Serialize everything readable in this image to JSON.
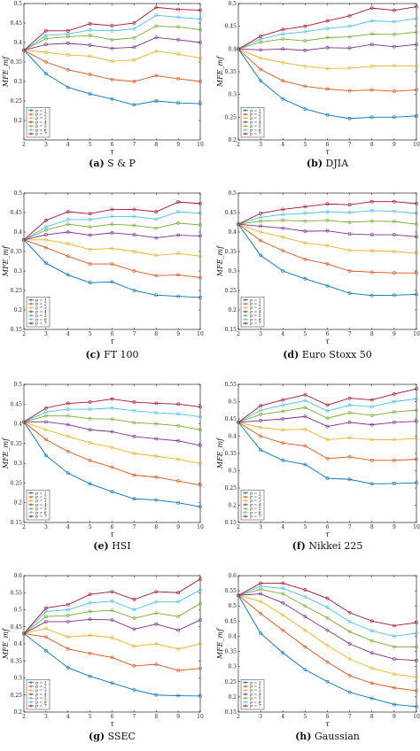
{
  "figure": {
    "series_colors": [
      "#0072BD",
      "#D95319",
      "#EDB120",
      "#7E2F8E",
      "#77AC30",
      "#4DBEEE",
      "#A2142F"
    ],
    "legend_position": "bottom-left",
    "marker": "open-circle"
  },
  "chart_data": [
    {
      "type": "line",
      "caption_letter": "(a)",
      "caption_text": "S & P",
      "xlabel": "τ",
      "ylabel": "MFE_mf",
      "xlim": [
        2,
        10
      ],
      "ylim": [
        0.15,
        0.5
      ],
      "xticks": [
        "2",
        "3",
        "4",
        "5",
        "6",
        "7",
        "8",
        "9",
        "10"
      ],
      "yticks": [
        "0.2",
        "0.25",
        "0.3",
        "0.35",
        "0.4",
        "0.45",
        "0.5"
      ],
      "x": [
        2,
        3,
        4,
        5,
        6,
        7,
        8,
        9,
        10
      ],
      "series": [
        {
          "name": "p = 1",
          "values": [
            0.38,
            0.32,
            0.285,
            0.268,
            0.255,
            0.24,
            0.25,
            0.245,
            0.243
          ]
        },
        {
          "name": "p = 2",
          "values": [
            0.38,
            0.35,
            0.33,
            0.318,
            0.305,
            0.3,
            0.315,
            0.307,
            0.3
          ]
        },
        {
          "name": "p = 3",
          "values": [
            0.38,
            0.375,
            0.368,
            0.365,
            0.352,
            0.355,
            0.378,
            0.37,
            0.36
          ]
        },
        {
          "name": "p = 4",
          "values": [
            0.38,
            0.395,
            0.398,
            0.393,
            0.385,
            0.388,
            0.413,
            0.407,
            0.4
          ]
        },
        {
          "name": "p = 5",
          "values": [
            0.38,
            0.41,
            0.415,
            0.418,
            0.407,
            0.412,
            0.442,
            0.44,
            0.433
          ]
        },
        {
          "name": "p = 6",
          "values": [
            0.38,
            0.418,
            0.422,
            0.432,
            0.43,
            0.435,
            0.47,
            0.465,
            0.46
          ]
        },
        {
          "name": "p = 7",
          "values": [
            0.38,
            0.43,
            0.43,
            0.448,
            0.443,
            0.45,
            0.49,
            0.485,
            0.483
          ]
        }
      ]
    },
    {
      "type": "line",
      "caption_letter": "(b)",
      "caption_text": "DJIA",
      "xlabel": "τ",
      "ylabel": "MFE_mf",
      "xlim": [
        2,
        10
      ],
      "ylim": [
        0.2,
        0.5
      ],
      "xticks": [
        "2",
        "3",
        "4",
        "5",
        "6",
        "7",
        "8",
        "9",
        "10"
      ],
      "yticks": [
        "0.2",
        "0.25",
        "0.3",
        "0.35",
        "0.4",
        "0.45",
        "0.5"
      ],
      "x": [
        2,
        3,
        4,
        5,
        6,
        7,
        8,
        9,
        10
      ],
      "series": [
        {
          "name": "p = 1",
          "values": [
            0.4,
            0.33,
            0.29,
            0.268,
            0.255,
            0.247,
            0.25,
            0.25,
            0.253
          ]
        },
        {
          "name": "p = 2",
          "values": [
            0.4,
            0.355,
            0.33,
            0.318,
            0.312,
            0.308,
            0.31,
            0.307,
            0.31
          ]
        },
        {
          "name": "p = 3",
          "values": [
            0.4,
            0.38,
            0.37,
            0.362,
            0.357,
            0.358,
            0.362,
            0.363,
            0.362
          ]
        },
        {
          "name": "p = 4",
          "values": [
            0.4,
            0.398,
            0.4,
            0.397,
            0.403,
            0.402,
            0.41,
            0.405,
            0.41
          ]
        },
        {
          "name": "p = 5",
          "values": [
            0.4,
            0.415,
            0.422,
            0.418,
            0.425,
            0.427,
            0.433,
            0.432,
            0.437
          ]
        },
        {
          "name": "p = 6",
          "values": [
            0.4,
            0.422,
            0.433,
            0.438,
            0.445,
            0.45,
            0.462,
            0.46,
            0.467
          ]
        },
        {
          "name": "p = 7",
          "values": [
            0.4,
            0.428,
            0.443,
            0.45,
            0.462,
            0.473,
            0.49,
            0.485,
            0.493
          ]
        }
      ]
    },
    {
      "type": "line",
      "caption_letter": "(c)",
      "caption_text": "FT 100",
      "xlabel": "τ",
      "ylabel": "MFE_mf",
      "xlim": [
        2,
        10
      ],
      "ylim": [
        0.15,
        0.5
      ],
      "xticks": [
        "2",
        "3",
        "4",
        "5",
        "6",
        "7",
        "8",
        "9",
        "10"
      ],
      "yticks": [
        "0.15",
        "0.2",
        "0.25",
        "0.3",
        "0.35",
        "0.4",
        "0.45",
        "0.5"
      ],
      "x": [
        2,
        3,
        4,
        5,
        6,
        7,
        8,
        9,
        10
      ],
      "series": [
        {
          "name": "p = 1",
          "values": [
            0.38,
            0.32,
            0.29,
            0.27,
            0.272,
            0.25,
            0.238,
            0.235,
            0.232
          ]
        },
        {
          "name": "p = 2",
          "values": [
            0.38,
            0.36,
            0.338,
            0.318,
            0.318,
            0.3,
            0.288,
            0.29,
            0.283
          ]
        },
        {
          "name": "p = 3",
          "values": [
            0.38,
            0.38,
            0.37,
            0.355,
            0.358,
            0.35,
            0.34,
            0.345,
            0.338
          ]
        },
        {
          "name": "p = 4",
          "values": [
            0.38,
            0.393,
            0.4,
            0.392,
            0.398,
            0.393,
            0.385,
            0.392,
            0.39
          ]
        },
        {
          "name": "p = 5",
          "values": [
            0.38,
            0.405,
            0.42,
            0.413,
            0.42,
            0.417,
            0.41,
            0.423,
            0.418
          ]
        },
        {
          "name": "p = 6",
          "values": [
            0.38,
            0.413,
            0.432,
            0.432,
            0.44,
            0.44,
            0.433,
            0.452,
            0.448
          ]
        },
        {
          "name": "p = 7",
          "values": [
            0.38,
            0.43,
            0.452,
            0.447,
            0.458,
            0.458,
            0.452,
            0.477,
            0.473
          ]
        }
      ]
    },
    {
      "type": "line",
      "caption_letter": "(d)",
      "caption_text": "Euro Stoxx 50",
      "xlabel": "τ",
      "ylabel": "MFE_mf",
      "xlim": [
        2,
        10
      ],
      "ylim": [
        0.15,
        0.5
      ],
      "xticks": [
        "2",
        "3",
        "4",
        "5",
        "6",
        "7",
        "8",
        "9",
        "10"
      ],
      "yticks": [
        "0.15",
        "0.2",
        "0.25",
        "0.3",
        "0.35",
        "0.4",
        "0.45",
        "0.5"
      ],
      "x": [
        2,
        3,
        4,
        5,
        6,
        7,
        8,
        9,
        10
      ],
      "series": [
        {
          "name": "p = 1",
          "values": [
            0.42,
            0.34,
            0.3,
            0.28,
            0.262,
            0.243,
            0.237,
            0.238,
            0.24
          ]
        },
        {
          "name": "p = 2",
          "values": [
            0.42,
            0.378,
            0.352,
            0.33,
            0.318,
            0.3,
            0.297,
            0.295,
            0.295
          ]
        },
        {
          "name": "p = 3",
          "values": [
            0.42,
            0.4,
            0.387,
            0.372,
            0.365,
            0.353,
            0.352,
            0.35,
            0.345
          ]
        },
        {
          "name": "p = 4",
          "values": [
            0.42,
            0.415,
            0.41,
            0.402,
            0.403,
            0.395,
            0.393,
            0.393,
            0.388
          ]
        },
        {
          "name": "p = 5",
          "values": [
            0.42,
            0.428,
            0.43,
            0.428,
            0.43,
            0.425,
            0.428,
            0.427,
            0.42
          ]
        },
        {
          "name": "p = 6",
          "values": [
            0.42,
            0.438,
            0.445,
            0.448,
            0.452,
            0.45,
            0.455,
            0.453,
            0.448
          ]
        },
        {
          "name": "p = 7",
          "values": [
            0.42,
            0.448,
            0.458,
            0.465,
            0.472,
            0.47,
            0.478,
            0.478,
            0.473
          ]
        }
      ]
    },
    {
      "type": "line",
      "caption_letter": "(e)",
      "caption_text": "HSI",
      "xlabel": "τ",
      "ylabel": "MFE_mf",
      "xlim": [
        2,
        10
      ],
      "ylim": [
        0.15,
        0.5
      ],
      "xticks": [
        "2",
        "3",
        "4",
        "5",
        "6",
        "7",
        "8",
        "9",
        "10"
      ],
      "yticks": [
        "0.15",
        "0.2",
        "0.25",
        "0.3",
        "0.35",
        "0.4",
        "0.45",
        "0.5"
      ],
      "x": [
        2,
        3,
        4,
        5,
        6,
        7,
        8,
        9,
        10
      ],
      "series": [
        {
          "name": "p = 1",
          "values": [
            0.405,
            0.32,
            0.275,
            0.248,
            0.228,
            0.21,
            0.207,
            0.2,
            0.19
          ]
        },
        {
          "name": "p = 2",
          "values": [
            0.405,
            0.36,
            0.33,
            0.307,
            0.29,
            0.27,
            0.265,
            0.255,
            0.245
          ]
        },
        {
          "name": "p = 3",
          "values": [
            0.405,
            0.385,
            0.368,
            0.352,
            0.34,
            0.325,
            0.318,
            0.31,
            0.3
          ]
        },
        {
          "name": "p = 4",
          "values": [
            0.405,
            0.405,
            0.398,
            0.385,
            0.38,
            0.368,
            0.362,
            0.357,
            0.345
          ]
        },
        {
          "name": "p = 5",
          "values": [
            0.405,
            0.42,
            0.42,
            0.413,
            0.412,
            0.403,
            0.4,
            0.395,
            0.385
          ]
        },
        {
          "name": "p = 6",
          "values": [
            0.405,
            0.43,
            0.437,
            0.437,
            0.44,
            0.433,
            0.428,
            0.425,
            0.418
          ]
        },
        {
          "name": "p = 7",
          "values": [
            0.405,
            0.44,
            0.452,
            0.455,
            0.463,
            0.455,
            0.452,
            0.45,
            0.443
          ]
        }
      ]
    },
    {
      "type": "line",
      "caption_letter": "(f)",
      "caption_text": "Nikkei 225",
      "xlabel": "τ",
      "ylabel": "MFE_mf",
      "xlim": [
        2,
        10
      ],
      "ylim": [
        0.15,
        0.55
      ],
      "xticks": [
        "2",
        "3",
        "4",
        "5",
        "6",
        "7",
        "8",
        "9",
        "10"
      ],
      "yticks": [
        "0.15",
        "0.2",
        "0.25",
        "0.3",
        "0.35",
        "0.4",
        "0.45",
        "0.5",
        "0.55"
      ],
      "x": [
        2,
        3,
        4,
        5,
        6,
        7,
        8,
        9,
        10
      ],
      "series": [
        {
          "name": "p = 1",
          "values": [
            0.44,
            0.36,
            0.33,
            0.318,
            0.278,
            0.275,
            0.262,
            0.263,
            0.265
          ]
        },
        {
          "name": "p = 2",
          "values": [
            0.44,
            0.4,
            0.38,
            0.372,
            0.335,
            0.34,
            0.33,
            0.33,
            0.333
          ]
        },
        {
          "name": "p = 3",
          "values": [
            0.44,
            0.425,
            0.418,
            0.42,
            0.39,
            0.395,
            0.39,
            0.39,
            0.393
          ]
        },
        {
          "name": "p = 4",
          "values": [
            0.44,
            0.445,
            0.45,
            0.457,
            0.428,
            0.44,
            0.433,
            0.44,
            0.443
          ]
        },
        {
          "name": "p = 5",
          "values": [
            0.44,
            0.463,
            0.472,
            0.483,
            0.452,
            0.468,
            0.46,
            0.47,
            0.475
          ]
        },
        {
          "name": "p = 6",
          "values": [
            0.44,
            0.475,
            0.49,
            0.503,
            0.473,
            0.49,
            0.485,
            0.5,
            0.508
          ]
        },
        {
          "name": "p = 7",
          "values": [
            0.44,
            0.488,
            0.505,
            0.52,
            0.49,
            0.51,
            0.505,
            0.522,
            0.537
          ]
        }
      ]
    },
    {
      "type": "line",
      "caption_letter": "(g)",
      "caption_text": "SSEC",
      "xlabel": "τ",
      "ylabel": "MFE_mf",
      "xlim": [
        2,
        10
      ],
      "ylim": [
        0.2,
        0.6
      ],
      "xticks": [
        "2",
        "3",
        "4",
        "5",
        "6",
        "7",
        "8",
        "9",
        "10"
      ],
      "yticks": [
        "0.2",
        "0.25",
        "0.3",
        "0.35",
        "0.4",
        "0.45",
        "0.5",
        "0.55",
        "0.6"
      ],
      "x": [
        2,
        3,
        4,
        5,
        6,
        7,
        8,
        9,
        10
      ],
      "series": [
        {
          "name": "p = 1",
          "values": [
            0.43,
            0.38,
            0.33,
            0.305,
            0.285,
            0.265,
            0.25,
            0.248,
            0.247
          ]
        },
        {
          "name": "p = 2",
          "values": [
            0.43,
            0.42,
            0.385,
            0.372,
            0.36,
            0.335,
            0.34,
            0.322,
            0.328
          ]
        },
        {
          "name": "p = 3",
          "values": [
            0.43,
            0.445,
            0.42,
            0.425,
            0.418,
            0.393,
            0.4,
            0.385,
            0.4
          ]
        },
        {
          "name": "p = 4",
          "values": [
            0.43,
            0.465,
            0.465,
            0.472,
            0.47,
            0.443,
            0.458,
            0.44,
            0.47
          ]
        },
        {
          "name": "p = 5",
          "values": [
            0.43,
            0.48,
            0.483,
            0.495,
            0.498,
            0.475,
            0.49,
            0.48,
            0.518
          ]
        },
        {
          "name": "p = 6",
          "values": [
            0.43,
            0.495,
            0.5,
            0.52,
            0.525,
            0.5,
            0.523,
            0.523,
            0.558
          ]
        },
        {
          "name": "p = 7",
          "values": [
            0.43,
            0.505,
            0.515,
            0.545,
            0.553,
            0.53,
            0.553,
            0.55,
            0.59
          ]
        }
      ]
    },
    {
      "type": "line",
      "caption_letter": "(h)",
      "caption_text": "Gaussian",
      "xlabel": "τ",
      "ylabel": "MFE_mf",
      "xlim": [
        2,
        10
      ],
      "ylim": [
        0.15,
        0.6
      ],
      "xticks": [
        "2",
        "3",
        "4",
        "5",
        "6",
        "7",
        "8",
        "9",
        "10"
      ],
      "yticks": [
        "0.15",
        "0.2",
        "0.25",
        "0.3",
        "0.35",
        "0.4",
        "0.45",
        "0.5",
        "0.55",
        "0.6"
      ],
      "x": [
        2,
        3,
        4,
        5,
        6,
        7,
        8,
        9,
        10
      ],
      "series": [
        {
          "name": "p = 1",
          "values": [
            0.535,
            0.41,
            0.345,
            0.29,
            0.25,
            0.215,
            0.195,
            0.175,
            0.168
          ]
        },
        {
          "name": "p = 2",
          "values": [
            0.535,
            0.475,
            0.42,
            0.365,
            0.315,
            0.27,
            0.245,
            0.23,
            0.22
          ]
        },
        {
          "name": "p = 3",
          "values": [
            0.535,
            0.515,
            0.47,
            0.42,
            0.37,
            0.325,
            0.295,
            0.275,
            0.265
          ]
        },
        {
          "name": "p = 4",
          "values": [
            0.535,
            0.54,
            0.51,
            0.465,
            0.42,
            0.375,
            0.345,
            0.325,
            0.32
          ]
        },
        {
          "name": "p = 5",
          "values": [
            0.535,
            0.555,
            0.54,
            0.5,
            0.46,
            0.415,
            0.385,
            0.365,
            0.365
          ]
        },
        {
          "name": "p = 6",
          "values": [
            0.535,
            0.565,
            0.558,
            0.53,
            0.495,
            0.448,
            0.418,
            0.4,
            0.41
          ]
        },
        {
          "name": "p = 7",
          "values": [
            0.535,
            0.575,
            0.575,
            0.553,
            0.525,
            0.478,
            0.45,
            0.435,
            0.445
          ]
        }
      ]
    }
  ]
}
